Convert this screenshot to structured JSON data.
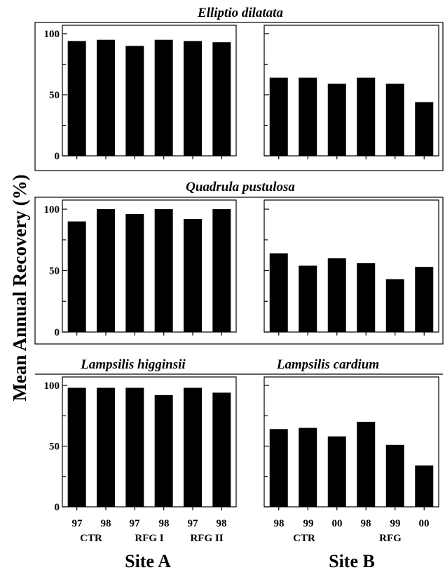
{
  "ylabel": "Mean Annual Recovery (%)",
  "yticks": [
    "0",
    "50",
    "100"
  ],
  "site_labels": [
    "Site A",
    "Site B"
  ],
  "site_a_axis": {
    "categories": [
      "97",
      "98",
      "97",
      "98",
      "97",
      "98"
    ],
    "groups": [
      "CTR",
      "RFG I",
      "RFG II"
    ]
  },
  "site_b_axis": {
    "categories": [
      "98",
      "99",
      "00",
      "98",
      "99",
      "00"
    ],
    "groups": [
      "CTR",
      "RFG"
    ]
  },
  "chart_data": [
    {
      "type": "bar",
      "title": "Elliptio dilatata",
      "site": "Site A",
      "categories": [
        "97",
        "98",
        "97",
        "98",
        "97",
        "98"
      ],
      "groups": [
        "CTR",
        "CTR",
        "RFG I",
        "RFG I",
        "RFG II",
        "RFG II"
      ],
      "values": [
        94,
        95,
        90,
        95,
        94,
        93
      ],
      "ylim": [
        0,
        100
      ]
    },
    {
      "type": "bar",
      "title": "",
      "site": "Site B",
      "categories": [
        "98",
        "99",
        "00",
        "98",
        "99",
        "00"
      ],
      "groups": [
        "CTR",
        "CTR",
        "CTR",
        "RFG",
        "RFG",
        "RFG"
      ],
      "values": [
        64,
        64,
        59,
        64,
        59,
        44
      ],
      "ylim": [
        0,
        100
      ]
    },
    {
      "type": "bar",
      "title": "Quadrula pustulosa",
      "site": "Site A",
      "categories": [
        "97",
        "98",
        "97",
        "98",
        "97",
        "98"
      ],
      "groups": [
        "CTR",
        "CTR",
        "RFG I",
        "RFG I",
        "RFG II",
        "RFG II"
      ],
      "values": [
        90,
        100,
        96,
        100,
        92,
        100
      ],
      "ylim": [
        0,
        100
      ]
    },
    {
      "type": "bar",
      "title": "",
      "site": "Site B",
      "categories": [
        "98",
        "99",
        "00",
        "98",
        "99",
        "00"
      ],
      "groups": [
        "CTR",
        "CTR",
        "CTR",
        "RFG",
        "RFG",
        "RFG"
      ],
      "values": [
        64,
        54,
        60,
        56,
        43,
        53
      ],
      "ylim": [
        0,
        100
      ]
    },
    {
      "type": "bar",
      "title": "Lampsilis higginsii",
      "site": "Site A",
      "categories": [
        "97",
        "98",
        "97",
        "98",
        "97",
        "98"
      ],
      "groups": [
        "CTR",
        "CTR",
        "RFG I",
        "RFG I",
        "RFG II",
        "RFG II"
      ],
      "values": [
        98,
        98,
        98,
        92,
        98,
        94
      ],
      "ylim": [
        0,
        100
      ]
    },
    {
      "type": "bar",
      "title": "Lampsilis cardium",
      "site": "Site B",
      "categories": [
        "98",
        "99",
        "00",
        "98",
        "99",
        "00"
      ],
      "groups": [
        "CTR",
        "CTR",
        "CTR",
        "RFG",
        "RFG",
        "RFG"
      ],
      "values": [
        64,
        65,
        58,
        70,
        51,
        34
      ],
      "ylim": [
        0,
        100
      ]
    }
  ]
}
